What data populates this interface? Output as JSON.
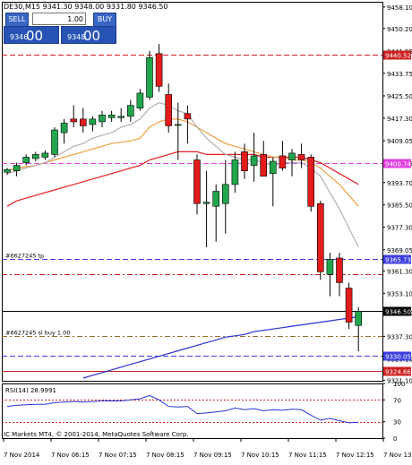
{
  "header": {
    "symbol_info": "DE30,M15 9341.30 9348.00 9331.80 9346.50",
    "sell_label": "SELL",
    "buy_label": "BUY",
    "lot_value": "1.00",
    "sell_price_small": "9346",
    "sell_price_big": "00",
    "buy_price_small": "9348",
    "buy_price_big": "00"
  },
  "colors": {
    "bull": "#21a64b",
    "bear": "#e31b1b",
    "ma_fast": "#b0b0b0",
    "ma_mid": "#f0a040",
    "ma_slow": "#e02020",
    "ma_long": "#2a32d0",
    "level_red": "#cc2020",
    "level_magenta": "#e040e0",
    "level_blue": "#3d3de0",
    "level_brown": "#9b6a2a"
  },
  "chart_data": {
    "type": "candlestick",
    "symbol": "DE30",
    "timeframe": "M15",
    "ohlc_display": {
      "open": 9341.3,
      "high": 9348.0,
      "low": 9331.8,
      "close": 9346.5
    },
    "ylim": [
      9321.0,
      9460.0
    ],
    "y_ticks": [
      "9458.10",
      "9450.20",
      "9441.95",
      "9433.75",
      "9425.50",
      "9417.30",
      "9409.05",
      "9400.85",
      "9393.70",
      "9385.50",
      "9377.30",
      "9369.05",
      "9361.30",
      "9353.10",
      "9345.90",
      "9337.30",
      "9329.10",
      "9321.10"
    ],
    "x_labels": [
      "7 Nov 2014",
      "7 Nov 06:15",
      "7 Nov 07:15",
      "7 Nov 08:15",
      "7 Nov 09:15",
      "7 Nov 10:15",
      "7 Nov 11:15",
      "7 Nov 12:15",
      "7 Nov 13:15"
    ],
    "candles": [
      {
        "o": 9397.5,
        "h": 9399.0,
        "l": 9396.5,
        "c": 9398.5
      },
      {
        "o": 9398.0,
        "h": 9401.0,
        "l": 9396.0,
        "c": 9400.0
      },
      {
        "o": 9401.0,
        "h": 9404.0,
        "l": 9400.0,
        "c": 9403.0
      },
      {
        "o": 9402.5,
        "h": 9405.0,
        "l": 9401.5,
        "c": 9404.0
      },
      {
        "o": 9403.0,
        "h": 9405.5,
        "l": 9402.0,
        "c": 9404.5
      },
      {
        "o": 9404.0,
        "h": 9414.0,
        "l": 9403.0,
        "c": 9413.0
      },
      {
        "o": 9412.0,
        "h": 9417.0,
        "l": 9408.0,
        "c": 9415.5
      },
      {
        "o": 9417.0,
        "h": 9422.0,
        "l": 9414.0,
        "c": 9416.0
      },
      {
        "o": 9417.0,
        "h": 9421.0,
        "l": 9412.0,
        "c": 9414.5
      },
      {
        "o": 9415.0,
        "h": 9418.0,
        "l": 9412.5,
        "c": 9417.0
      },
      {
        "o": 9416.0,
        "h": 9420.0,
        "l": 9414.0,
        "c": 9418.5
      },
      {
        "o": 9417.5,
        "h": 9420.0,
        "l": 9416.0,
        "c": 9418.5
      },
      {
        "o": 9417.5,
        "h": 9421.0,
        "l": 9416.0,
        "c": 9418.0
      },
      {
        "o": 9418.0,
        "h": 9424.0,
        "l": 9416.0,
        "c": 9422.0
      },
      {
        "o": 9421.0,
        "h": 9428.0,
        "l": 9420.0,
        "c": 9426.5
      },
      {
        "o": 9425.0,
        "h": 9442.0,
        "l": 9424.0,
        "c": 9439.5
      },
      {
        "o": 9441.0,
        "h": 9444.5,
        "l": 9427.0,
        "c": 9429.0
      },
      {
        "o": 9426.0,
        "h": 9430.0,
        "l": 9412.0,
        "c": 9414.5
      },
      {
        "o": 9415.0,
        "h": 9423.0,
        "l": 9402.0,
        "c": 9415.0
      },
      {
        "o": 9419.0,
        "h": 9422.0,
        "l": 9408.0,
        "c": 9417.0
      },
      {
        "o": 9402.0,
        "h": 9404.0,
        "l": 9382.0,
        "c": 9386.0
      },
      {
        "o": 9386.0,
        "h": 9398.0,
        "l": 9370.0,
        "c": 9386.5
      },
      {
        "o": 9385.0,
        "h": 9393.0,
        "l": 9372.0,
        "c": 9390.5
      },
      {
        "o": 9386.0,
        "h": 9402.0,
        "l": 9375.0,
        "c": 9393.0
      },
      {
        "o": 9393.0,
        "h": 9405.0,
        "l": 9390.0,
        "c": 9402.0
      },
      {
        "o": 9405.0,
        "h": 9408.0,
        "l": 9395.0,
        "c": 9398.0
      },
      {
        "o": 9400.0,
        "h": 9412.0,
        "l": 9394.0,
        "c": 9403.5
      },
      {
        "o": 9404.0,
        "h": 9409.0,
        "l": 9396.0,
        "c": 9396.0
      },
      {
        "o": 9397.0,
        "h": 9403.0,
        "l": 9385.0,
        "c": 9401.5
      },
      {
        "o": 9403.5,
        "h": 9409.0,
        "l": 9398.0,
        "c": 9399.0
      },
      {
        "o": 9402.0,
        "h": 9406.0,
        "l": 9396.0,
        "c": 9404.5
      },
      {
        "o": 9404.0,
        "h": 9408.0,
        "l": 9399.0,
        "c": 9402.0
      },
      {
        "o": 9403.0,
        "h": 9404.0,
        "l": 9383.0,
        "c": 9385.0
      },
      {
        "o": 9386.0,
        "h": 9387.0,
        "l": 9358.0,
        "c": 9361.0
      },
      {
        "o": 9360.0,
        "h": 9368.0,
        "l": 9352.0,
        "c": 9365.5
      },
      {
        "o": 9366.0,
        "h": 9368.0,
        "l": 9352.0,
        "c": 9357.0
      },
      {
        "o": 9355.0,
        "h": 9357.0,
        "l": 9340.0,
        "c": 9342.5
      },
      {
        "o": 9341.3,
        "h": 9348.0,
        "l": 9331.8,
        "c": 9346.5
      }
    ],
    "ma_fast": [
      9397,
      9398,
      9399,
      9400,
      9401,
      9403,
      9405,
      9407,
      9408,
      9410,
      9411,
      9412,
      9414,
      9415,
      9417,
      9421,
      9423,
      9422,
      9420,
      9419,
      9414,
      9410,
      9407,
      9404,
      9403,
      9402,
      9402,
      9401,
      9400,
      9401,
      9401,
      9401,
      9399,
      9396,
      9390,
      9384,
      9377,
      9370
    ],
    "ma_mid": [
      9398,
      9399,
      9399.5,
      9400,
      9401,
      9402,
      9403,
      9404,
      9405,
      9406,
      9407,
      9408,
      9408.5,
      9409,
      9410,
      9414,
      9416,
      9417,
      9417,
      9416,
      9414,
      9412,
      9410,
      9408,
      9407,
      9406,
      9405,
      9404,
      9403,
      9403,
      9402,
      9402,
      9401,
      9399,
      9396,
      9393,
      9389,
      9385
    ],
    "ma_slow": [
      9385,
      9387,
      9388,
      9389,
      9390,
      9391,
      9392,
      9393,
      9394,
      9395,
      9396,
      9397,
      9398,
      9399,
      9400,
      9402,
      9403,
      9404,
      9405,
      9405,
      9405,
      9404,
      9404,
      9404,
      9404,
      9404,
      9404,
      9403,
      9403,
      9403,
      9403,
      9403,
      9402,
      9401,
      9399,
      9397,
      9395,
      9393
    ],
    "ma_long": [
      null,
      null,
      null,
      null,
      null,
      null,
      null,
      null,
      9322,
      9323,
      9324,
      9325,
      9326,
      9327,
      9328,
      9329,
      9330,
      9331,
      9332,
      9333,
      9334,
      9335,
      9336,
      9337,
      9337.5,
      9338,
      9339,
      9339.5,
      9340,
      9340.5,
      9341,
      9341.5,
      9342,
      9342.5,
      9343,
      9343.5,
      9344,
      9344.5
    ],
    "levels": [
      {
        "price": 9440.52,
        "label": "9440.52",
        "kind": "dashed",
        "color": "level_red"
      },
      {
        "price": 9400.74,
        "label": "9400.74",
        "kind": "dashed",
        "color": "level_magenta"
      },
      {
        "price": 9365.73,
        "label": "9365.73",
        "kind": "dashed",
        "color": "level_blue",
        "text": "#6627245 tp"
      },
      {
        "price": 9360.0,
        "label": "",
        "kind": "dashdot",
        "color": "level_red"
      },
      {
        "price": 9346.5,
        "label": "9346.50",
        "kind": "solid",
        "color": "#000000"
      },
      {
        "price": 9337.3,
        "label": "",
        "kind": "dashdot",
        "color": "level_brown",
        "text": "#6627245 sl buy 1.00"
      },
      {
        "price": 9330.05,
        "label": "9330.05",
        "kind": "dashed",
        "color": "level_blue"
      },
      {
        "price": 9324.66,
        "label": "9324.66",
        "kind": "solid",
        "color": "level_red"
      }
    ]
  },
  "rsi": {
    "label": "RSI(14) 28.9991",
    "ticks": [
      "100",
      "70",
      "30",
      "0"
    ],
    "values": [
      58,
      60,
      61,
      62,
      62,
      65,
      66,
      67,
      66,
      67,
      68,
      68,
      68,
      70,
      72,
      78,
      70,
      58,
      57,
      58,
      45,
      46,
      48,
      50,
      55,
      52,
      54,
      50,
      52,
      51,
      53,
      52,
      42,
      33,
      36,
      32,
      28,
      29
    ]
  },
  "footer": {
    "copyright": "IC Markets MT4, © 2001-2014, MetaQuotes Software Corp."
  }
}
